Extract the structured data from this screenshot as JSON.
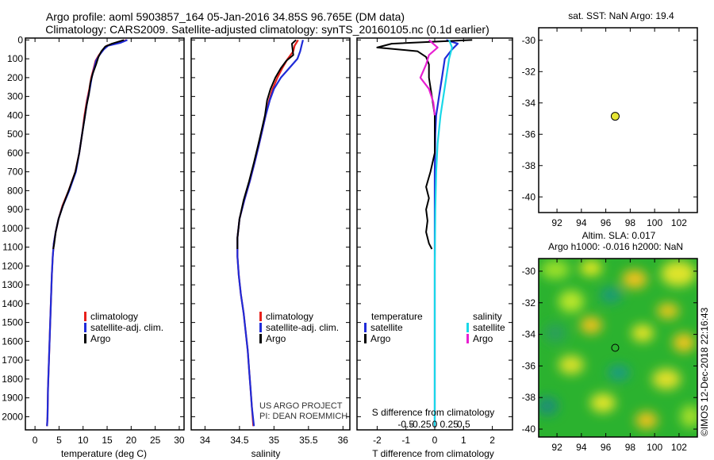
{
  "header": {
    "title_line1": "Argo profile: aoml 5903857_164 05-Jan-2016 34.85S 96.765E (DM data)",
    "title_line2": "Climatology: CARS2009. Satellite-adjusted climatology: synTS_20160105.nc (0.1d earlier)"
  },
  "credits": {
    "pi_line1": "US ARGO PROJECT",
    "pi_line2": "PI: DEAN ROEMMICH",
    "imos": "©IMOS 12-Dec-2018 22:16:43"
  },
  "colors": {
    "climatology": "#e8201b",
    "satellite": "#1f2bd8",
    "argo": "#000000",
    "sat_salinity": "#19d8e8",
    "argo_salinity": "#e81fd1",
    "marker": "#e6e635"
  },
  "chart_data": [
    {
      "type": "line",
      "id": "temperature",
      "xlabel": "temperature (deg C)",
      "ylabel": "",
      "xlim": [
        -2,
        31
      ],
      "ylim": [
        2070,
        -10
      ],
      "xticks": [
        0,
        5,
        10,
        15,
        20,
        25,
        30
      ],
      "yticks": [
        0,
        100,
        200,
        300,
        400,
        500,
        600,
        700,
        800,
        900,
        1000,
        1100,
        1200,
        1300,
        1400,
        1500,
        1600,
        1700,
        1800,
        1900,
        2000
      ],
      "legend": [
        "climatology",
        "satellite-adj. clim.",
        "Argo"
      ],
      "series": [
        {
          "name": "climatology",
          "color": "#e8201b",
          "points": [
            [
              19.0,
              0
            ],
            [
              17.5,
              15
            ],
            [
              15.0,
              30
            ],
            [
              14.2,
              50
            ],
            [
              13.3,
              80
            ],
            [
              12.6,
              110
            ],
            [
              12.2,
              150
            ],
            [
              11.7,
              200
            ],
            [
              11.3,
              260
            ],
            [
              10.8,
              320
            ],
            [
              10.3,
              400
            ],
            [
              9.8,
              500
            ],
            [
              9.2,
              600
            ],
            [
              8.4,
              700
            ],
            [
              7.0,
              800
            ],
            [
              5.7,
              880
            ],
            [
              4.9,
              950
            ],
            [
              4.3,
              1020
            ],
            [
              3.9,
              1080
            ],
            [
              3.7,
              1150
            ],
            [
              3.5,
              1250
            ],
            [
              3.3,
              1400
            ],
            [
              3.1,
              1550
            ],
            [
              2.9,
              1700
            ],
            [
              2.7,
              1850
            ],
            [
              2.6,
              2000
            ],
            [
              2.5,
              2050
            ]
          ]
        },
        {
          "name": "satellite-adj. clim.",
          "color": "#1f2bd8",
          "points": [
            [
              19.2,
              0
            ],
            [
              17.8,
              15
            ],
            [
              15.2,
              30
            ],
            [
              14.3,
              50
            ],
            [
              13.4,
              80
            ],
            [
              12.7,
              110
            ],
            [
              12.3,
              150
            ],
            [
              11.8,
              200
            ],
            [
              11.4,
              260
            ],
            [
              10.9,
              320
            ],
            [
              10.4,
              400
            ],
            [
              9.8,
              500
            ],
            [
              9.2,
              600
            ],
            [
              8.5,
              700
            ],
            [
              7.1,
              800
            ],
            [
              5.8,
              880
            ],
            [
              4.9,
              950
            ],
            [
              4.3,
              1020
            ],
            [
              3.9,
              1080
            ],
            [
              3.7,
              1150
            ],
            [
              3.5,
              1250
            ],
            [
              3.3,
              1400
            ],
            [
              3.1,
              1550
            ],
            [
              2.9,
              1700
            ],
            [
              2.7,
              1850
            ],
            [
              2.6,
              2000
            ],
            [
              2.5,
              2050
            ]
          ]
        },
        {
          "name": "Argo",
          "color": "#000000",
          "points": [
            [
              18.5,
              0
            ],
            [
              16.0,
              20
            ],
            [
              14.6,
              35
            ],
            [
              13.8,
              60
            ],
            [
              13.2,
              90
            ],
            [
              12.7,
              130
            ],
            [
              12.0,
              180
            ],
            [
              11.5,
              230
            ],
            [
              11.2,
              290
            ],
            [
              10.7,
              350
            ],
            [
              10.3,
              420
            ],
            [
              9.8,
              500
            ],
            [
              9.2,
              600
            ],
            [
              8.4,
              700
            ],
            [
              7.0,
              800
            ],
            [
              5.8,
              880
            ],
            [
              4.9,
              950
            ],
            [
              4.3,
              1020
            ],
            [
              4.0,
              1080
            ],
            [
              3.8,
              1110
            ]
          ]
        }
      ]
    },
    {
      "type": "line",
      "id": "salinity",
      "xlabel": "salinity",
      "ylabel": "",
      "xlim": [
        33.8,
        36.1
      ],
      "ylim": [
        2070,
        -10
      ],
      "xticks": [
        34,
        34.5,
        35,
        35.5,
        36
      ],
      "legend": [
        "climatology",
        "satellite-adj. clim.",
        "Argo"
      ],
      "series": [
        {
          "name": "climatology",
          "color": "#e8201b",
          "points": [
            [
              35.35,
              0
            ],
            [
              35.3,
              30
            ],
            [
              35.28,
              60
            ],
            [
              35.2,
              100
            ],
            [
              35.12,
              150
            ],
            [
              35.05,
              200
            ],
            [
              34.98,
              260
            ],
            [
              34.93,
              320
            ],
            [
              34.88,
              400
            ],
            [
              34.83,
              480
            ],
            [
              34.78,
              560
            ],
            [
              34.72,
              650
            ],
            [
              34.65,
              750
            ],
            [
              34.57,
              850
            ],
            [
              34.5,
              950
            ],
            [
              34.47,
              1050
            ],
            [
              34.47,
              1150
            ],
            [
              34.49,
              1250
            ],
            [
              34.52,
              1350
            ],
            [
              34.56,
              1450
            ],
            [
              34.59,
              1550
            ],
            [
              34.62,
              1650
            ],
            [
              34.64,
              1750
            ],
            [
              34.66,
              1850
            ],
            [
              34.68,
              1950
            ],
            [
              34.7,
              2050
            ]
          ]
        },
        {
          "name": "satellite-adj. clim.",
          "color": "#1f2bd8",
          "points": [
            [
              35.42,
              0
            ],
            [
              35.4,
              30
            ],
            [
              35.38,
              60
            ],
            [
              35.34,
              100
            ],
            [
              35.22,
              150
            ],
            [
              35.1,
              200
            ],
            [
              35.0,
              260
            ],
            [
              34.94,
              320
            ],
            [
              34.88,
              400
            ],
            [
              34.83,
              480
            ],
            [
              34.78,
              560
            ],
            [
              34.72,
              650
            ],
            [
              34.65,
              750
            ],
            [
              34.57,
              850
            ],
            [
              34.5,
              950
            ],
            [
              34.47,
              1050
            ],
            [
              34.47,
              1150
            ],
            [
              34.49,
              1250
            ],
            [
              34.52,
              1350
            ],
            [
              34.56,
              1450
            ],
            [
              34.59,
              1550
            ],
            [
              34.62,
              1650
            ],
            [
              34.64,
              1750
            ],
            [
              34.66,
              1850
            ],
            [
              34.68,
              1950
            ],
            [
              34.71,
              2050
            ]
          ]
        },
        {
          "name": "Argo",
          "color": "#000000",
          "points": [
            [
              35.32,
              0
            ],
            [
              35.26,
              20
            ],
            [
              35.27,
              50
            ],
            [
              35.28,
              80
            ],
            [
              35.18,
              110
            ],
            [
              35.1,
              150
            ],
            [
              35.02,
              200
            ],
            [
              34.95,
              260
            ],
            [
              34.9,
              320
            ],
            [
              34.87,
              400
            ],
            [
              34.82,
              480
            ],
            [
              34.77,
              560
            ],
            [
              34.71,
              650
            ],
            [
              34.64,
              750
            ],
            [
              34.56,
              850
            ],
            [
              34.5,
              950
            ],
            [
              34.47,
              1050
            ],
            [
              34.47,
              1110
            ]
          ]
        }
      ]
    },
    {
      "type": "line",
      "id": "difference",
      "xlabel": "T difference from climatology",
      "xlabel2": "S difference from climatology",
      "xlim": [
        -2.7,
        2.7
      ],
      "ylim": [
        2070,
        -10
      ],
      "xticks": [
        -2,
        -1,
        0,
        1,
        2
      ],
      "xticks_labels": [
        "-2",
        "-1",
        "0",
        "1",
        "2"
      ],
      "xticks2": [
        -1.0,
        -0.5,
        0,
        0.5,
        1.0
      ],
      "xticks2_labels": [
        "-0.5",
        "-0.25",
        "0",
        "0.25",
        "0.5"
      ],
      "legend_temperature_title": "temperature",
      "legend_salinity_title": "salinity",
      "legend_temperature": [
        "satellite",
        "Argo"
      ],
      "legend_salinity": [
        "satellite",
        "Argo"
      ],
      "series": [
        {
          "name": "T satellite",
          "color": "#1f2bd8",
          "points": [
            [
              0.4,
              0
            ],
            [
              0.8,
              20
            ],
            [
              0.6,
              50
            ],
            [
              0.35,
              100
            ],
            [
              0.25,
              200
            ],
            [
              0.15,
              300
            ],
            [
              0.05,
              400
            ],
            [
              0.02,
              500
            ],
            [
              0,
              700
            ],
            [
              0,
              2050
            ]
          ]
        },
        {
          "name": "T Argo",
          "color": "#000000",
          "points": [
            [
              1.3,
              0
            ],
            [
              -1.5,
              20
            ],
            [
              -2.0,
              40
            ],
            [
              -0.6,
              60
            ],
            [
              -0.3,
              90
            ],
            [
              -0.2,
              130
            ],
            [
              -0.2,
              200
            ],
            [
              -0.1,
              300
            ],
            [
              0,
              400
            ],
            [
              0,
              600
            ],
            [
              -0.15,
              700
            ],
            [
              -0.3,
              780
            ],
            [
              -0.2,
              840
            ],
            [
              -0.3,
              900
            ],
            [
              -0.25,
              960
            ],
            [
              -0.3,
              1020
            ],
            [
              -0.2,
              1080
            ],
            [
              -0.1,
              1110
            ]
          ]
        },
        {
          "name": "S satellite",
          "color": "#19d8e8",
          "points": [
            [
              0.5,
              0
            ],
            [
              0.6,
              40
            ],
            [
              0.5,
              100
            ],
            [
              0.4,
              200
            ],
            [
              0.3,
              300
            ],
            [
              0.2,
              400
            ],
            [
              0.1,
              550
            ],
            [
              0.05,
              700
            ],
            [
              0.02,
              900
            ],
            [
              0,
              1200
            ],
            [
              0,
              2050
            ]
          ]
        },
        {
          "name": "S Argo",
          "color": "#e81fd1",
          "points": [
            [
              -0.2,
              0
            ],
            [
              0.1,
              40
            ],
            [
              -0.2,
              80
            ],
            [
              -0.3,
              130
            ],
            [
              -0.5,
              200
            ],
            [
              -0.2,
              260
            ],
            [
              -0.05,
              330
            ],
            [
              0,
              400
            ]
          ]
        }
      ]
    },
    {
      "type": "scatter",
      "id": "sst_map",
      "title": "sat. SST: NaN Argo: 19.4",
      "xlim": [
        90.5,
        103.5
      ],
      "ylim": [
        -41,
        -29.2
      ],
      "xticks": [
        92,
        94,
        96,
        98,
        100,
        102
      ],
      "yticks": [
        -30,
        -32,
        -34,
        -36,
        -38,
        -40
      ],
      "points": [
        [
          96.77,
          -34.85
        ]
      ]
    },
    {
      "type": "heatmap",
      "id": "sla_map",
      "title": "Altim. SLA: 0.017",
      "title2": "Argo h1000: -0.016 h2000: NaN",
      "xlim": [
        90.5,
        103.5
      ],
      "ylim": [
        -40.5,
        -29.2
      ],
      "xticks": [
        92,
        94,
        96,
        98,
        100,
        102
      ],
      "yticks": [
        -30,
        -32,
        -34,
        -36,
        -38,
        -40
      ],
      "points": [
        [
          96.77,
          -34.85
        ]
      ]
    }
  ]
}
